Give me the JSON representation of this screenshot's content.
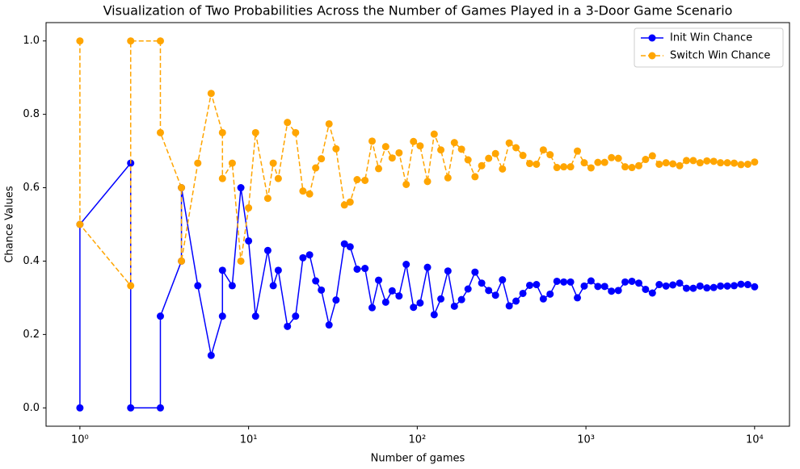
{
  "chart_data": {
    "type": "line",
    "title": "Visualization of Two Probabilities Across the Number of Games Played in a 3-Door Game Scenario",
    "x_label": "Number of games",
    "y_label": "Chance Values",
    "xscale": "log",
    "legend": "upper right",
    "grid": false,
    "xlim": [
      0.63,
      16100
    ],
    "ylim": [
      -0.05,
      1.05
    ],
    "xticks": [
      {
        "value": 1,
        "label": "10⁰"
      },
      {
        "value": 10,
        "label": "10¹"
      },
      {
        "value": 100,
        "label": "10²"
      },
      {
        "value": 1000,
        "label": "10³"
      },
      {
        "value": 10000,
        "label": "10⁴"
      }
    ],
    "yticks": [
      {
        "value": 0,
        "label": "0.0"
      },
      0.2,
      0.4,
      0.6,
      0.8,
      {
        "value": 1,
        "label": "1.0"
      }
    ],
    "x": [
      1,
      1,
      2,
      2,
      3,
      3,
      4,
      4,
      5,
      6,
      7,
      7,
      8,
      9,
      10,
      11,
      13,
      14,
      15,
      17,
      19,
      21,
      23,
      25,
      27,
      30,
      33,
      37,
      40,
      44,
      49,
      54,
      59,
      65,
      71,
      78,
      86,
      95,
      104,
      115,
      126,
      138,
      152,
      166,
      183,
      200,
      220,
      241,
      265,
      291,
      320,
      351,
      385,
      423,
      464,
      509,
      559,
      613,
      673,
      739,
      811,
      890,
      977,
      1072,
      1177,
      1291,
      1417,
      1556,
      1707,
      1874,
      2057,
      2257,
      2477,
      2719,
      2984,
      3275,
      3594,
      3944,
      4328,
      4750,
      5214,
      5722,
      6280,
      6892,
      7564,
      8302,
      9111,
      10000
    ],
    "series": [
      {
        "name": "Init Win Chance",
        "color": "#0000ff",
        "linestyle": "solid",
        "values": [
          0,
          0.5,
          0.667,
          0,
          0,
          0.25,
          0.4,
          0.6,
          0.333,
          0.143,
          0.25,
          0.375,
          0.333,
          0.6,
          0.455,
          0.25,
          0.429,
          0.333,
          0.375,
          0.222,
          0.25,
          0.409,
          0.417,
          0.346,
          0.321,
          0.226,
          0.294,
          0.447,
          0.439,
          0.378,
          0.38,
          0.273,
          0.348,
          0.288,
          0.319,
          0.305,
          0.391,
          0.274,
          0.286,
          0.383,
          0.254,
          0.297,
          0.373,
          0.277,
          0.295,
          0.324,
          0.37,
          0.34,
          0.32,
          0.307,
          0.349,
          0.278,
          0.291,
          0.312,
          0.334,
          0.336,
          0.297,
          0.31,
          0.345,
          0.343,
          0.343,
          0.3,
          0.332,
          0.346,
          0.331,
          0.331,
          0.318,
          0.32,
          0.343,
          0.345,
          0.34,
          0.323,
          0.313,
          0.336,
          0.332,
          0.335,
          0.34,
          0.326,
          0.326,
          0.332,
          0.327,
          0.328,
          0.332,
          0.332,
          0.333,
          0.337,
          0.336,
          0.33
        ]
      },
      {
        "name": "Switch Win Chance",
        "color": "#ffa500",
        "linestyle": "dashed",
        "values": [
          1,
          0.5,
          0.333,
          1,
          1,
          0.75,
          0.6,
          0.4,
          0.667,
          0.857,
          0.75,
          0.625,
          0.667,
          0.4,
          0.545,
          0.75,
          0.571,
          0.667,
          0.625,
          0.778,
          0.75,
          0.591,
          0.583,
          0.654,
          0.679,
          0.774,
          0.706,
          0.553,
          0.561,
          0.622,
          0.62,
          0.727,
          0.652,
          0.712,
          0.681,
          0.695,
          0.609,
          0.726,
          0.714,
          0.617,
          0.746,
          0.703,
          0.627,
          0.723,
          0.705,
          0.676,
          0.63,
          0.66,
          0.68,
          0.693,
          0.651,
          0.722,
          0.709,
          0.688,
          0.666,
          0.664,
          0.703,
          0.69,
          0.655,
          0.657,
          0.657,
          0.7,
          0.668,
          0.654,
          0.669,
          0.669,
          0.682,
          0.68,
          0.657,
          0.655,
          0.66,
          0.677,
          0.687,
          0.664,
          0.668,
          0.665,
          0.66,
          0.674,
          0.674,
          0.668,
          0.673,
          0.672,
          0.668,
          0.668,
          0.667,
          0.663,
          0.664,
          0.67
        ]
      }
    ]
  }
}
